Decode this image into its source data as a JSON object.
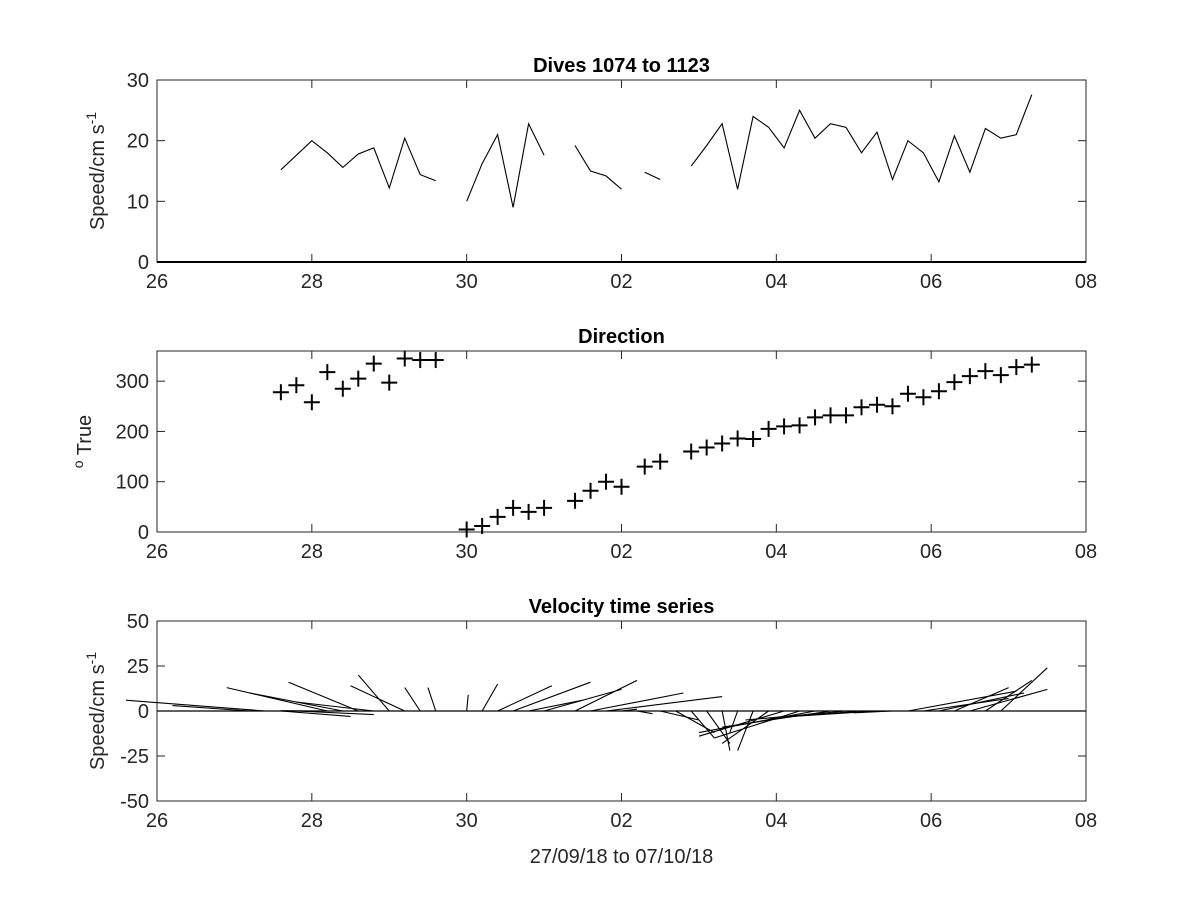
{
  "chart_data": [
    {
      "type": "line",
      "title": "Dives 1074 to 1123",
      "ylabel": "Speed/cm s",
      "ylabel_exponent": "-1",
      "xlabel": "",
      "xlim": [
        26,
        38
      ],
      "ylim": [
        0,
        30
      ],
      "xticks": [
        26,
        28,
        30,
        32,
        34,
        36,
        38
      ],
      "xtick_labels": [
        "26",
        "28",
        "30",
        "02",
        "04",
        "06",
        "08"
      ],
      "yticks": [
        0,
        10,
        20,
        30
      ],
      "ytick_labels": [
        "0",
        "10",
        "20",
        "30"
      ],
      "grid": false,
      "zero_line": true,
      "segments": [
        {
          "x": [
            27.6,
            28.0,
            28.2,
            28.4,
            28.6,
            28.8,
            29.0,
            29.2,
            29.4,
            29.6
          ],
          "y": [
            15.2,
            20.0,
            18.0,
            15.6,
            17.8,
            18.8,
            12.2,
            20.4,
            14.4,
            13.4
          ]
        },
        {
          "x": [
            30.0,
            30.2,
            30.4,
            30.6,
            30.8,
            31.0
          ],
          "y": [
            10.0,
            16.2,
            21.0,
            9.0,
            22.8,
            17.6
          ]
        },
        {
          "x": [
            31.4,
            31.6,
            31.8,
            32.0
          ],
          "y": [
            19.2,
            15.0,
            14.2,
            12.0
          ]
        },
        {
          "x": [
            32.3,
            32.5
          ],
          "y": [
            14.8,
            13.6
          ]
        },
        {
          "x": [
            32.9,
            33.1,
            33.3,
            33.5,
            33.7,
            33.9,
            34.1,
            34.3,
            34.5,
            34.7,
            34.9,
            35.1,
            35.3,
            35.5,
            35.7,
            35.9,
            36.1,
            36.3,
            36.5,
            36.7,
            36.9,
            37.1,
            37.3
          ],
          "y": [
            15.8,
            19.2,
            22.8,
            12.0,
            24.0,
            22.2,
            18.8,
            25.0,
            20.4,
            22.8,
            22.2,
            18.0,
            21.4,
            13.6,
            20.0,
            18.0,
            13.2,
            20.8,
            14.8,
            22.0,
            20.4,
            21.0,
            27.6
          ]
        }
      ]
    },
    {
      "type": "scatter",
      "title": "Direction",
      "ylabel": "True",
      "ylabel_prefix": "o",
      "xlabel": "",
      "xlim": [
        26,
        38
      ],
      "ylim": [
        0,
        360
      ],
      "xticks": [
        26,
        28,
        30,
        32,
        34,
        36,
        38
      ],
      "xtick_labels": [
        "26",
        "28",
        "30",
        "02",
        "04",
        "06",
        "08"
      ],
      "yticks": [
        0,
        100,
        200,
        300
      ],
      "ytick_labels": [
        "0",
        "100",
        "200",
        "300"
      ],
      "marker": "+",
      "grid": false,
      "x": [
        27.6,
        27.8,
        28.0,
        28.2,
        28.4,
        28.6,
        28.8,
        29.0,
        29.2,
        29.4,
        29.6,
        30.0,
        30.2,
        30.4,
        30.6,
        30.8,
        31.0,
        31.4,
        31.6,
        31.8,
        32.0,
        32.3,
        32.5,
        32.9,
        33.1,
        33.3,
        33.5,
        33.7,
        33.9,
        34.1,
        34.3,
        34.5,
        34.7,
        34.9,
        35.1,
        35.3,
        35.5,
        35.7,
        35.9,
        36.1,
        36.3,
        36.5,
        36.7,
        36.9,
        37.1,
        37.3
      ],
      "y": [
        278,
        292,
        258,
        318,
        285,
        305,
        335,
        297,
        345,
        342,
        342,
        5,
        12,
        30,
        48,
        40,
        48,
        62,
        82,
        100,
        90,
        130,
        140,
        160,
        168,
        176,
        186,
        185,
        205,
        210,
        212,
        228,
        232,
        232,
        248,
        253,
        250,
        275,
        268,
        280,
        298,
        310,
        320,
        312,
        328,
        333
      ]
    },
    {
      "type": "quiver",
      "title": "Velocity time series",
      "ylabel": "Speed/cm s",
      "ylabel_exponent": "-1",
      "xlabel": "27/09/18 to 07/10/18",
      "xlim": [
        26,
        38
      ],
      "ylim": [
        -50,
        50
      ],
      "xticks": [
        26,
        28,
        30,
        32,
        34,
        36,
        38
      ],
      "xtick_labels": [
        "26",
        "28",
        "30",
        "02",
        "04",
        "06",
        "08"
      ],
      "yticks": [
        -50,
        -25,
        0,
        25,
        50
      ],
      "ytick_labels": [
        "-50",
        "-25",
        "0",
        "25",
        "50"
      ],
      "grid": false,
      "zero_line": true,
      "vectors": [
        {
          "x": 27.2,
          "u": -1.0,
          "v": 3.0
        },
        {
          "x": 27.4,
          "u": -1.8,
          "v": 6.0
        },
        {
          "x": 27.6,
          "u": 0.9,
          "v": -3.0
        },
        {
          "x": 27.8,
          "u": 1.0,
          "v": -2.0
        },
        {
          "x": 28.0,
          "u": -0.4,
          "v": 0.2
        },
        {
          "x": 28.2,
          "u": -1.3,
          "v": 13.0
        },
        {
          "x": 28.4,
          "u": -1.2,
          "v": 10.0
        },
        {
          "x": 28.6,
          "u": -0.9,
          "v": 16.0
        },
        {
          "x": 28.8,
          "u": -1.0,
          "v": 5.0
        },
        {
          "x": 29.0,
          "u": -0.4,
          "v": 20.0
        },
        {
          "x": 29.2,
          "u": -0.7,
          "v": 14.0
        },
        {
          "x": 29.4,
          "u": -0.2,
          "v": 13.0
        },
        {
          "x": 29.6,
          "u": -0.1,
          "v": 13.0
        },
        {
          "x": 30.0,
          "u": 0.02,
          "v": 9.0
        },
        {
          "x": 30.2,
          "u": 0.2,
          "v": 15.0
        },
        {
          "x": 30.4,
          "u": 0.7,
          "v": 14.0
        },
        {
          "x": 30.6,
          "u": 1.0,
          "v": 16.0
        },
        {
          "x": 30.8,
          "u": 0.7,
          "v": 6.0
        },
        {
          "x": 31.0,
          "u": 1.0,
          "v": 12.0
        },
        {
          "x": 31.4,
          "u": 0.8,
          "v": 17.0
        },
        {
          "x": 31.6,
          "u": 1.2,
          "v": 10.0
        },
        {
          "x": 31.8,
          "u": 1.5,
          "v": 8.0
        },
        {
          "x": 32.0,
          "u": 0.2,
          "v": 1.0
        },
        {
          "x": 32.2,
          "u": 0.2,
          "v": -1.5
        },
        {
          "x": 32.3,
          "u": 0.4,
          "v": 0.0
        },
        {
          "x": 32.5,
          "u": 0.5,
          "v": -5.0
        },
        {
          "x": 32.7,
          "u": 0.5,
          "v": -12.0
        },
        {
          "x": 32.9,
          "u": 0.3,
          "v": -15.0
        },
        {
          "x": 33.1,
          "u": 0.3,
          "v": -18.0
        },
        {
          "x": 33.3,
          "u": 0.1,
          "v": -22.0
        },
        {
          "x": 33.5,
          "u": -0.1,
          "v": -12.0
        },
        {
          "x": 33.7,
          "u": -0.2,
          "v": -22.0
        },
        {
          "x": 33.9,
          "u": -0.6,
          "v": -18.0
        },
        {
          "x": 34.1,
          "u": -1.1,
          "v": -14.0
        },
        {
          "x": 34.3,
          "u": -1.1,
          "v": -15.0
        },
        {
          "x": 34.5,
          "u": -1.5,
          "v": -12.0
        },
        {
          "x": 34.7,
          "u": -1.4,
          "v": -9.0
        },
        {
          "x": 34.9,
          "u": -1.3,
          "v": -5.0
        },
        {
          "x": 35.1,
          "u": -1.2,
          "v": -4.0
        },
        {
          "x": 35.3,
          "u": -1.1,
          "v": -3.0
        },
        {
          "x": 35.5,
          "u": -0.5,
          "v": -1.0
        },
        {
          "x": 35.7,
          "u": 1.4,
          "v": 11.0
        },
        {
          "x": 35.9,
          "u": 1.1,
          "v": 7.0
        },
        {
          "x": 36.1,
          "u": 1.1,
          "v": 10.0
        },
        {
          "x": 36.3,
          "u": 0.7,
          "v": 13.0
        },
        {
          "x": 36.5,
          "u": 1.0,
          "v": 12.0
        },
        {
          "x": 36.7,
          "u": 0.6,
          "v": 17.0
        },
        {
          "x": 36.9,
          "u": 0.6,
          "v": 24.0
        }
      ]
    }
  ]
}
